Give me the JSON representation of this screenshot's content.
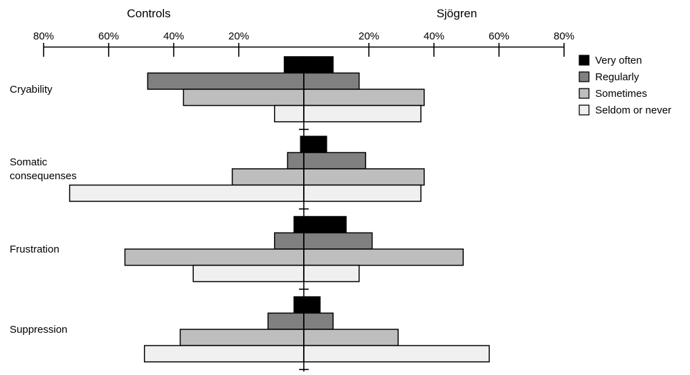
{
  "chart_data": {
    "type": "bar",
    "subtype": "diverging-horizontal",
    "left_label": "Controls",
    "right_label": "Sjögren",
    "xlim": [
      -80,
      80
    ],
    "x_ticks": [
      -80,
      -60,
      -40,
      -20,
      20,
      40,
      60,
      80
    ],
    "x_tick_labels": [
      "80%",
      "60%",
      "40%",
      "20%",
      "20%",
      "40%",
      "60%",
      "80%"
    ],
    "axis_position": "top",
    "grid": false,
    "legend_position": "right",
    "categories": [
      {
        "label": "Cryability",
        "label_lines": [
          "Cryability"
        ]
      },
      {
        "label": "Somatic consequenses",
        "label_lines": [
          "Somatic",
          "consequenses"
        ]
      },
      {
        "label": "Frustration",
        "label_lines": [
          "Frustration"
        ]
      },
      {
        "label": "Suppression",
        "label_lines": [
          "Suppression"
        ]
      }
    ],
    "series": [
      {
        "name": "Very often",
        "color": "#000000",
        "controls": [
          6,
          1,
          3,
          3
        ],
        "sjogren": [
          9,
          7,
          13,
          5
        ]
      },
      {
        "name": "Regularly",
        "color": "#808080",
        "controls": [
          48,
          5,
          9,
          11
        ],
        "sjogren": [
          17,
          19,
          21,
          9
        ]
      },
      {
        "name": "Sometimes",
        "color": "#bebebe",
        "controls": [
          37,
          22,
          55,
          38
        ],
        "sjogren": [
          37,
          37,
          49,
          29
        ]
      },
      {
        "name": "Seldom or never",
        "color": "#f0f0f0",
        "controls": [
          9,
          72,
          34,
          49
        ],
        "sjogren": [
          36,
          36,
          17,
          57
        ]
      }
    ]
  }
}
